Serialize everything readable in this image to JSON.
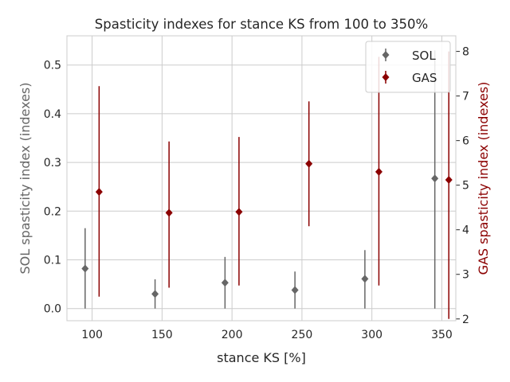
{
  "chart_data": {
    "type": "scatter",
    "title": "Spasticity indexes for stance KS from 100 to 350%",
    "xlabel": "stance KS [%]",
    "ylabel": "SOL spasticity index (indexes)",
    "y2label": "GAS spasticity index (indexes)",
    "x_ticks": [
      "100",
      "150",
      "200",
      "250",
      "300",
      "350"
    ],
    "xlim": [
      82,
      360
    ],
    "ylim": [
      -0.025,
      0.56
    ],
    "y_ticks": [
      "0.0",
      "0.1",
      "0.2",
      "0.3",
      "0.4",
      "0.5"
    ],
    "y2lim": [
      1.96,
      8.35
    ],
    "y2_ticks": [
      "2",
      "3",
      "4",
      "5",
      "6",
      "7",
      "8"
    ],
    "grid": true,
    "legend_position": "top-right",
    "series": [
      {
        "name": "SOL",
        "axis": "left",
        "color": "#666666",
        "x": [
          95,
          145,
          195,
          245,
          295,
          345
        ],
        "y": [
          0.082,
          0.03,
          0.053,
          0.038,
          0.061,
          0.267
        ],
        "err_low": [
          0.0,
          0.0,
          0.0,
          0.0,
          0.0,
          0.0
        ],
        "err_high": [
          0.165,
          0.06,
          0.106,
          0.076,
          0.12,
          0.53
        ]
      },
      {
        "name": "GAS",
        "axis": "right",
        "color": "#8b0000",
        "x": [
          105,
          155,
          205,
          255,
          305,
          355
        ],
        "y": [
          4.85,
          4.38,
          4.4,
          5.48,
          5.3,
          5.12
        ],
        "err_low": [
          2.5,
          2.7,
          2.75,
          4.08,
          2.75,
          2.0
        ],
        "err_high": [
          7.22,
          5.98,
          6.08,
          6.88,
          7.88,
          8.0
        ]
      }
    ]
  }
}
